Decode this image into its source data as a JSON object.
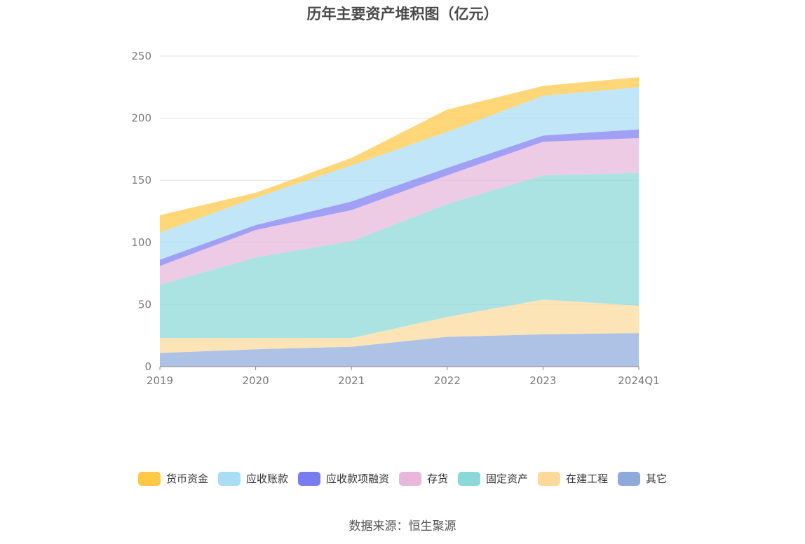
{
  "chart_data": {
    "type": "area",
    "stacked": true,
    "title": "历年主要资产堆积图（亿元）",
    "categories": [
      "2019",
      "2020",
      "2021",
      "2022",
      "2023",
      "2024Q1"
    ],
    "ylim": [
      0,
      250
    ],
    "yticks": [
      0,
      50,
      100,
      150,
      200,
      250
    ],
    "grid": true,
    "legend_position": "bottom",
    "series": [
      {
        "name": "其它",
        "color": "#8eaadb",
        "values": [
          11,
          14,
          16,
          24,
          26,
          27
        ]
      },
      {
        "name": "在建工程",
        "color": "#fcd99b",
        "values": [
          12,
          9,
          7,
          16,
          28,
          22
        ]
      },
      {
        "name": "固定资产",
        "color": "#8ad8d8",
        "values": [
          43,
          65,
          78,
          91,
          100,
          107
        ]
      },
      {
        "name": "存货",
        "color": "#e8b7db",
        "values": [
          15,
          22,
          25,
          23,
          27,
          28
        ]
      },
      {
        "name": "应收款项融资",
        "color": "#7b7bf0",
        "values": [
          5,
          4,
          7,
          6,
          5,
          7
        ]
      },
      {
        "name": "应收账款",
        "color": "#a8ddf5",
        "values": [
          22,
          22,
          29,
          29,
          32,
          34
        ]
      },
      {
        "name": "货币资金",
        "color": "#ffc845",
        "values": [
          14,
          4,
          6,
          18,
          8,
          8
        ]
      }
    ],
    "legend_order": [
      "货币资金",
      "应收账款",
      "应收款项融资",
      "存货",
      "固定资产",
      "在建工程",
      "其它"
    ]
  },
  "source": "数据来源：恒生聚源"
}
